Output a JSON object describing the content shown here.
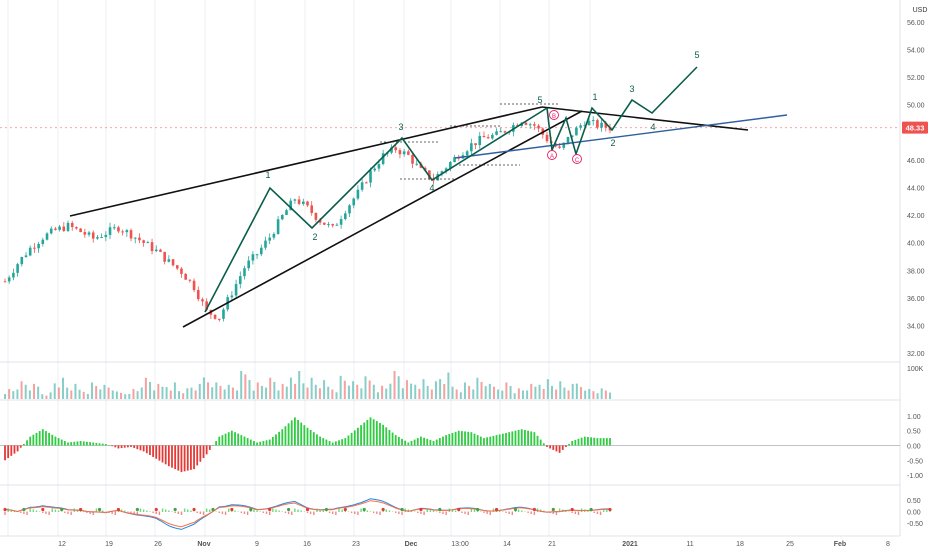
{
  "currency": "USD",
  "last_price": "48.33",
  "colors": {
    "up": "#26a69a",
    "down": "#ef5350",
    "wave": "#0b5d4b",
    "trend": "#111111",
    "support": "#2f5f9e",
    "pink": "#e91e63",
    "pos": "#2ecc40",
    "neg": "#e53935",
    "grid": "#eceff3"
  },
  "x_axis": {
    "labels": [
      "12",
      "19",
      "26",
      "Nov",
      "9",
      "16",
      "23",
      "Dec",
      "13:00",
      "14",
      "21",
      "2021",
      "11",
      "18",
      "25",
      "Feb",
      "8"
    ]
  },
  "price_axis": {
    "labels": [
      "56.00",
      "54.00",
      "52.00",
      "50.00",
      "46.00",
      "44.00",
      "42.00",
      "40.00",
      "38.00",
      "36.00",
      "34.00",
      "32.00"
    ]
  },
  "volume_axis": {
    "labels": [
      "100K"
    ]
  },
  "osc_axis": {
    "labels": [
      "1.00",
      "0.50",
      "0.00",
      "-0.50",
      "-1.00"
    ]
  },
  "stoch_axis": {
    "labels": [
      "0.50",
      "0.00",
      "-0.50"
    ]
  },
  "chart_data": [
    {
      "type": "candlestick",
      "ylim": [
        31.5,
        57
      ],
      "ohlc_close_path": [
        37.2,
        38.5,
        39.6,
        40.4,
        40.9,
        41.2,
        40.8,
        40.3,
        40.7,
        41.1,
        40.6,
        40.0,
        39.4,
        38.6,
        37.9,
        36.8,
        35.0,
        34.6,
        36.4,
        38.2,
        39.2,
        40.4,
        41.9,
        43.2,
        42.5,
        41.6,
        41.0,
        42.4,
        43.6,
        45.1,
        46.3,
        46.8,
        46.3,
        45.2,
        44.6,
        45.5,
        46.4,
        47.1,
        47.6,
        47.8,
        48.3,
        48.9,
        48.5,
        47.5,
        46.7,
        47.9,
        48.8,
        48.5,
        48.33
      ],
      "wave_labels": [
        {
          "text": "1",
          "price": 43.6
        },
        {
          "text": "2",
          "price": 40.4
        },
        {
          "text": "3",
          "price": 46.9
        },
        {
          "text": "4",
          "price": 44.3
        },
        {
          "text": "5",
          "price": 49.4
        },
        {
          "text": "1",
          "price": 49.2
        },
        {
          "text": "2",
          "price": 46.9
        },
        {
          "text": "3",
          "price": 49.9
        },
        {
          "text": "4",
          "price": 47.6
        },
        {
          "text": "5",
          "price": 52.8
        },
        {
          "text": "A",
          "price": 45.4
        },
        {
          "text": "B",
          "price": 48.9
        },
        {
          "text": "C",
          "price": 45.3
        }
      ],
      "projection_path": [
        48.5,
        47.6,
        49.7,
        48.6,
        52.2
      ]
    },
    {
      "type": "bar",
      "name": "volume",
      "values": [
        0.3,
        0.5,
        0.4,
        0.2,
        0.6,
        0.4,
        0.3,
        0.5,
        0.4,
        0.2,
        0.3,
        0.6,
        0.4,
        0.5,
        0.3,
        0.4,
        0.7,
        0.5,
        0.4,
        0.8,
        0.5,
        0.6,
        0.4,
        0.9,
        0.6,
        0.5,
        0.4,
        0.7,
        0.5,
        0.6,
        0.4,
        0.8,
        0.5,
        0.6,
        0.5,
        0.7,
        0.4,
        0.5,
        0.6,
        0.4,
        0.5,
        0.3,
        0.4,
        0.6,
        0.5,
        0.4,
        0.5,
        0.3,
        0.3
      ]
    },
    {
      "type": "bar",
      "name": "oscillator",
      "ylim": [
        -1.1,
        1.2
      ],
      "values": [
        -0.5,
        -0.2,
        0.3,
        0.55,
        0.3,
        0.1,
        0.15,
        0.1,
        0.05,
        -0.1,
        -0.05,
        -0.2,
        -0.45,
        -0.7,
        -0.9,
        -0.8,
        -0.3,
        0.3,
        0.5,
        0.3,
        0.1,
        0.2,
        0.55,
        0.95,
        0.6,
        0.3,
        0.1,
        0.25,
        0.6,
        0.95,
        0.7,
        0.35,
        0.1,
        0.3,
        0.15,
        0.35,
        0.5,
        0.45,
        0.25,
        0.35,
        0.45,
        0.55,
        0.45,
        -0.05,
        -0.25,
        0.15,
        0.3,
        0.25,
        0.25
      ]
    },
    {
      "type": "line",
      "name": "stochastic",
      "ylim": [
        -0.9,
        0.9
      ],
      "values": [
        0.1,
        -0.05,
        0.2,
        0.3,
        0.15,
        0.05,
        0.1,
        0.0,
        -0.1,
        0.05,
        -0.05,
        -0.2,
        -0.35,
        -0.6,
        -0.75,
        -0.6,
        -0.2,
        0.25,
        0.3,
        0.2,
        0.1,
        0.2,
        0.3,
        0.4,
        0.2,
        0.1,
        0.05,
        0.2,
        0.4,
        0.55,
        0.4,
        0.2,
        0.05,
        0.1,
        0.05,
        0.1,
        0.15,
        0.1,
        0.05,
        0.08,
        0.1,
        0.15,
        0.12,
        0.0,
        -0.05,
        0.05,
        0.1,
        0.08,
        0.06
      ]
    }
  ]
}
